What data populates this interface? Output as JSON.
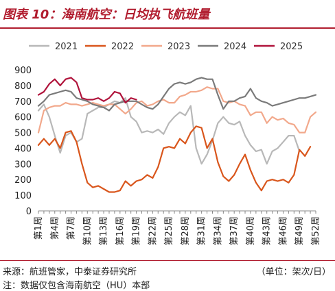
{
  "figure": {
    "title": "图表 10：海南航空：日均执飞航班量",
    "source": "来源：航班管家，中泰证券研究所",
    "unit": "（单位：架次/日）",
    "note": "注：数据仅包含海南航空（HU）本部"
  },
  "colors": {
    "title": "#b11c2e",
    "2021": "#b8b8b8",
    "2022": "#d9561c",
    "2023": "#f2a88b",
    "2024": "#7a7a7a",
    "2025": "#b0133b"
  },
  "chart_data": {
    "type": "line",
    "title": "图表 10：海南航空：日均执飞航班量",
    "xlabel": "",
    "ylabel": "",
    "ylim": [
      0,
      900
    ],
    "yticks": [
      0,
      100,
      200,
      300,
      400,
      500,
      600,
      700,
      800,
      900
    ],
    "grid": false,
    "legend": "top",
    "categories": [
      "第1周",
      "第2周",
      "第3周",
      "第4周",
      "第5周",
      "第6周",
      "第7周",
      "第8周",
      "第9周",
      "第10周",
      "第11周",
      "第12周",
      "第13周",
      "第14周",
      "第15周",
      "第16周",
      "第17周",
      "第18周",
      "第19周",
      "第20周",
      "第21周",
      "第22周",
      "第23周",
      "第24周",
      "第25周",
      "第26周",
      "第27周",
      "第28周",
      "第29周",
      "第30周",
      "第31周",
      "第32周",
      "第33周",
      "第34周",
      "第35周",
      "第36周",
      "第37周",
      "第38周",
      "第39周",
      "第40周",
      "第41周",
      "第42周",
      "第43周",
      "第44周",
      "第45周",
      "第46周",
      "第47周",
      "第48周",
      "第49周",
      "第50周",
      "第51周",
      "第52周"
    ],
    "tick_labels": [
      "第1周",
      "第4周",
      "第7周",
      "第10周",
      "第13周",
      "第16周",
      "第19周",
      "第22周",
      "第25周",
      "第28周",
      "第31周",
      "第34周",
      "第37周",
      "第40周",
      "第43周",
      "第46周",
      "第49周",
      "第52周"
    ],
    "series": [
      {
        "name": "2021",
        "color": "#b8b8b8",
        "values": [
          640,
          680,
          600,
          480,
          370,
          480,
          500,
          440,
          460,
          620,
          640,
          660,
          660,
          680,
          700,
          690,
          720,
          600,
          570,
          500,
          510,
          500,
          520,
          490,
          560,
          600,
          630,
          610,
          670,
          400,
          300,
          360,
          450,
          560,
          600,
          560,
          550,
          570,
          480,
          420,
          380,
          390,
          300,
          380,
          400,
          440,
          480,
          480,
          380,
          null,
          null,
          null
        ]
      },
      {
        "name": "2022",
        "color": "#d9561c",
        "values": [
          420,
          460,
          420,
          460,
          400,
          500,
          510,
          440,
          300,
          180,
          150,
          160,
          140,
          120,
          120,
          130,
          190,
          160,
          190,
          200,
          230,
          210,
          280,
          400,
          410,
          400,
          460,
          430,
          500,
          540,
          530,
          400,
          460,
          310,
          220,
          190,
          230,
          300,
          360,
          260,
          180,
          130,
          190,
          200,
          190,
          200,
          180,
          230,
          390,
          350,
          410,
          null
        ]
      },
      {
        "name": "2023",
        "color": "#f2a88b",
        "values": [
          500,
          640,
          660,
          670,
          670,
          690,
          680,
          680,
          670,
          680,
          690,
          680,
          670,
          680,
          680,
          650,
          620,
          650,
          690,
          700,
          670,
          680,
          700,
          710,
          690,
          690,
          730,
          740,
          760,
          760,
          770,
          790,
          780,
          780,
          700,
          690,
          700,
          680,
          670,
          610,
          630,
          630,
          560,
          600,
          580,
          590,
          560,
          550,
          500,
          500,
          600,
          630
        ]
      },
      {
        "name": "2024",
        "color": "#7a7a7a",
        "values": [
          670,
          700,
          740,
          750,
          760,
          770,
          760,
          720,
          710,
          700,
          680,
          670,
          660,
          640,
          680,
          690,
          700,
          700,
          700,
          680,
          660,
          650,
          680,
          730,
          780,
          810,
          820,
          810,
          820,
          840,
          850,
          840,
          840,
          740,
          650,
          700,
          700,
          720,
          730,
          780,
          720,
          700,
          690,
          670,
          680,
          690,
          700,
          710,
          720,
          720,
          730,
          740
        ]
      },
      {
        "name": "2025",
        "color": "#b0133b",
        "values": [
          740,
          760,
          810,
          840,
          800,
          840,
          850,
          820,
          720,
          710,
          710,
          720,
          700,
          720,
          760,
          750,
          690,
          720,
          710,
          null,
          null,
          null,
          null,
          null,
          null,
          null,
          null,
          null,
          null,
          null,
          null,
          null,
          null,
          null,
          null,
          null,
          null,
          null,
          null,
          null,
          null,
          null,
          null,
          null,
          null,
          null,
          null,
          null,
          null,
          null,
          null,
          null
        ]
      }
    ]
  }
}
